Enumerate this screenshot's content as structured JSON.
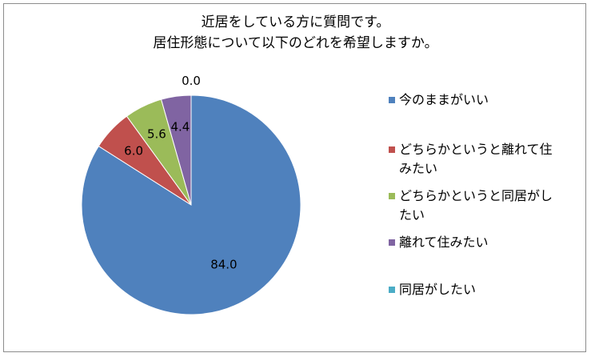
{
  "chart_data": {
    "type": "pie",
    "title": "近居をしている方に質問です。\n居住形態について以下のどれを希望しますか。",
    "title_lines": [
      "近居をしている方に質問です。",
      "居住形態について以下のどれを希望しますか。"
    ],
    "categories": [
      "今のままがいい",
      "どちらかというと離れて住みたい",
      "どちらかというと同居がしたい",
      "離れて住みたい",
      "同居がしたい"
    ],
    "legend_lines": [
      [
        "今のままがいい"
      ],
      [
        "どちらかというと離れて住",
        "みたい"
      ],
      [
        "どちらかというと同居がし",
        "たい"
      ],
      [
        "離れて住みたい"
      ],
      [
        "同居がしたい"
      ]
    ],
    "values": [
      84.0,
      6.0,
      5.6,
      4.4,
      0.0
    ],
    "data_labels": [
      "84.0",
      "6.0",
      "5.6",
      "4.4",
      "0.0"
    ],
    "colors": [
      "#4f81bd",
      "#c0504d",
      "#9bbb59",
      "#8064a2",
      "#4bacc6"
    ],
    "legend_position": "right",
    "start_angle": "12 o'clock",
    "direction": "clockwise"
  }
}
